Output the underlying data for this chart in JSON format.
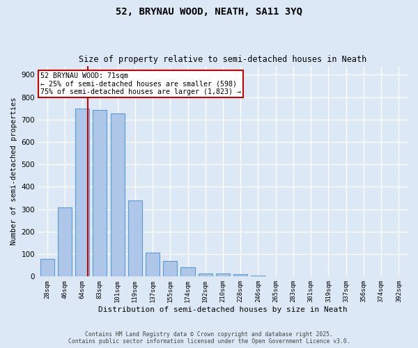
{
  "title": "52, BRYNAU WOOD, NEATH, SA11 3YQ",
  "subtitle": "Size of property relative to semi-detached houses in Neath",
  "xlabel": "Distribution of semi-detached houses by size in Neath",
  "ylabel": "Number of semi-detached properties",
  "bar_labels": [
    "28sqm",
    "46sqm",
    "64sqm",
    "83sqm",
    "101sqm",
    "119sqm",
    "137sqm",
    "155sqm",
    "174sqm",
    "192sqm",
    "210sqm",
    "228sqm",
    "246sqm",
    "265sqm",
    "283sqm",
    "301sqm",
    "319sqm",
    "337sqm",
    "356sqm",
    "374sqm",
    "392sqm"
  ],
  "bar_values": [
    80,
    307,
    748,
    743,
    727,
    340,
    108,
    70,
    40,
    15,
    13,
    10,
    5,
    0,
    0,
    0,
    0,
    0,
    0,
    0,
    0
  ],
  "bar_color": "#aec6e8",
  "bar_edge_color": "#5b9bd5",
  "property_line_label": "52 BRYNAU WOOD: 71sqm",
  "annotation_line1": "← 25% of semi-detached houses are smaller (598)",
  "annotation_line2": "75% of semi-detached houses are larger (1,823) →",
  "box_color": "#cc0000",
  "ylim": [
    0,
    940
  ],
  "yticks": [
    0,
    100,
    200,
    300,
    400,
    500,
    600,
    700,
    800,
    900
  ],
  "background_color": "#dce8f5",
  "grid_color": "#ffffff",
  "fig_bg_color": "#dce8f5",
  "footer_line1": "Contains HM Land Registry data © Crown copyright and database right 2025.",
  "footer_line2": "Contains public sector information licensed under the Open Government Licence v3.0."
}
